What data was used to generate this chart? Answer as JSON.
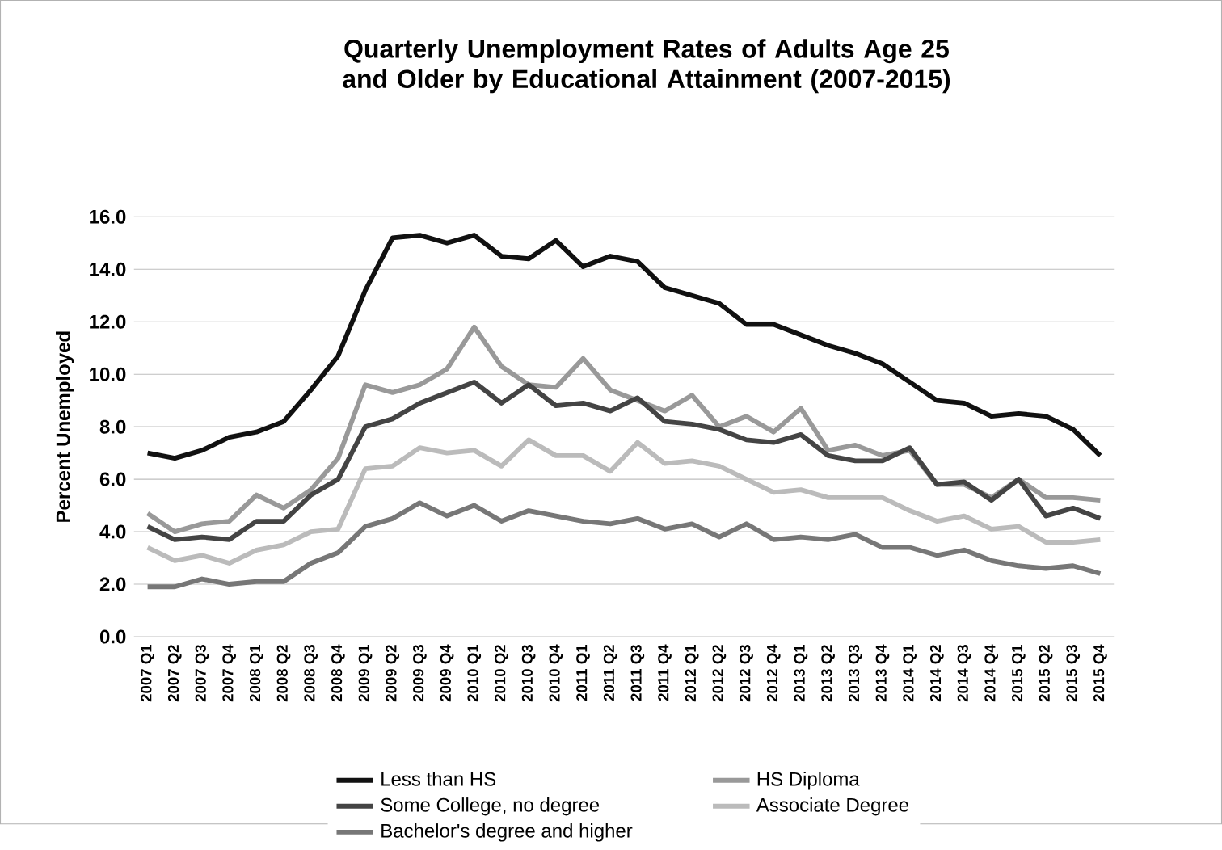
{
  "chart_data": {
    "type": "line",
    "title": "Quarterly Unemployment Rates of Adults Age 25 and Older by Educational Attainment (2007-2015)",
    "ylabel": "Percent Unemployed",
    "categories": [
      "2007 Q1",
      "2007 Q2",
      "2007 Q3",
      "2007 Q4",
      "2008 Q1",
      "2008 Q2",
      "2008 Q3",
      "2008 Q4",
      "2009 Q1",
      "2009 Q2",
      "2009 Q3",
      "2009 Q4",
      "2010 Q1",
      "2010 Q2",
      "2010 Q3",
      "2010 Q4",
      "2011 Q1",
      "2011 Q2",
      "2011 Q3",
      "2011 Q4",
      "2012 Q1",
      "2012 Q2",
      "2012 Q3",
      "2012 Q4",
      "2013 Q1",
      "2013 Q2",
      "2013 Q3",
      "2013 Q4",
      "2014 Q1",
      "2014 Q2",
      "2014 Q3",
      "2014 Q4",
      "2015 Q1",
      "2015 Q2",
      "2015 Q3",
      "2015 Q4"
    ],
    "series": [
      {
        "name": "Less than HS",
        "color": "#111111",
        "values": [
          7.0,
          6.8,
          7.1,
          7.6,
          7.8,
          8.2,
          9.4,
          10.7,
          13.2,
          15.2,
          15.3,
          15.0,
          15.3,
          14.5,
          14.4,
          15.1,
          14.1,
          14.5,
          14.3,
          13.3,
          13.0,
          12.7,
          11.9,
          11.9,
          11.5,
          11.1,
          10.8,
          10.4,
          9.7,
          9.0,
          8.9,
          8.4,
          8.5,
          8.4,
          7.9,
          6.9
        ]
      },
      {
        "name": "HS Diploma",
        "color": "#999999",
        "values": [
          4.7,
          4.0,
          4.3,
          4.4,
          5.4,
          4.9,
          5.6,
          6.8,
          9.6,
          9.3,
          9.6,
          10.2,
          11.8,
          10.3,
          9.6,
          9.5,
          10.6,
          9.4,
          9.0,
          8.6,
          9.2,
          8.0,
          8.4,
          7.8,
          8.7,
          7.1,
          7.3,
          6.9,
          7.1,
          5.8,
          5.8,
          5.3,
          6.0,
          5.3,
          5.3,
          5.2
        ]
      },
      {
        "name": "Some College, no degree",
        "color": "#444444",
        "values": [
          4.2,
          3.7,
          3.8,
          3.7,
          4.4,
          4.4,
          5.4,
          6.0,
          8.0,
          8.3,
          8.9,
          9.3,
          9.7,
          8.9,
          9.6,
          8.8,
          8.9,
          8.6,
          9.1,
          8.2,
          8.1,
          7.9,
          7.5,
          7.4,
          7.7,
          6.9,
          6.7,
          6.7,
          7.2,
          5.8,
          5.9,
          5.2,
          6.0,
          4.6,
          4.9,
          4.5
        ]
      },
      {
        "name": "Associate Degree",
        "color": "#bbbbbb",
        "values": [
          3.4,
          2.9,
          3.1,
          2.8,
          3.3,
          3.5,
          4.0,
          4.1,
          6.4,
          6.5,
          7.2,
          7.0,
          7.1,
          6.5,
          7.5,
          6.9,
          6.9,
          6.3,
          7.4,
          6.6,
          6.7,
          6.5,
          6.0,
          5.5,
          5.6,
          5.3,
          5.3,
          5.3,
          4.8,
          4.4,
          4.6,
          4.1,
          4.2,
          3.6,
          3.6,
          3.7
        ]
      },
      {
        "name": "Bachelor's degree and higher",
        "color": "#777777",
        "values": [
          1.9,
          1.9,
          2.2,
          2.0,
          2.1,
          2.1,
          2.8,
          3.2,
          4.2,
          4.5,
          5.1,
          4.6,
          5.0,
          4.4,
          4.8,
          4.6,
          4.4,
          4.3,
          4.5,
          4.1,
          4.3,
          3.8,
          4.3,
          3.7,
          3.8,
          3.7,
          3.9,
          3.4,
          3.4,
          3.1,
          3.3,
          2.9,
          2.7,
          2.6,
          2.7,
          2.4
        ]
      }
    ],
    "ylim": [
      0,
      16
    ],
    "yticks": [
      {
        "value": 0,
        "label": "0.0"
      },
      {
        "value": 2,
        "label": "2.0"
      },
      {
        "value": 4,
        "label": "4.0"
      },
      {
        "value": 6,
        "label": "6.0"
      },
      {
        "value": 8,
        "label": "8.0"
      },
      {
        "value": 10,
        "label": "10.0"
      },
      {
        "value": 12,
        "label": "12.0"
      },
      {
        "value": 14,
        "label": "14.0"
      },
      {
        "value": 16,
        "label": "16.0"
      }
    ],
    "grid": "y",
    "legend": "bottom",
    "marker": "none",
    "line_style": "solid"
  }
}
